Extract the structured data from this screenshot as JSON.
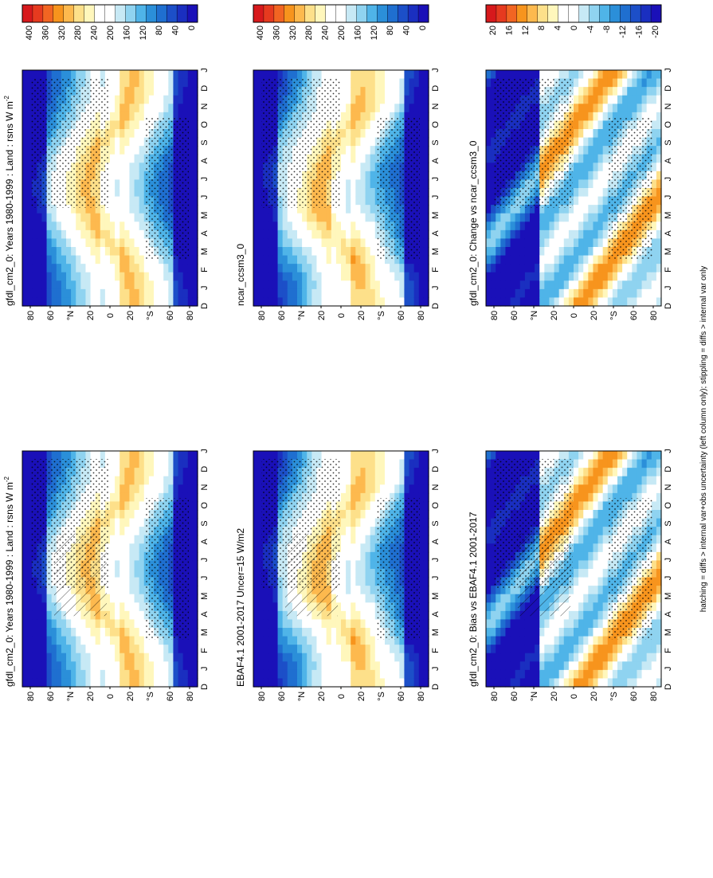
{
  "footer_note": "hatching = diffs > internal var+obs uncertainty (left column only); stippling = diffs > internal var only",
  "colorbar_abs": {
    "labels": [
      "400",
      "360",
      "320",
      "280",
      "240",
      "200",
      "160",
      "120",
      "80",
      "40",
      "0"
    ],
    "colors": [
      "#d7191c",
      "#e63a1f",
      "#f26522",
      "#f7941d",
      "#fdb94e",
      "#fde08a",
      "#fff7bc",
      "#ffffff",
      "#ffffff",
      "#c7e9f5",
      "#8fd3f0",
      "#4fb4e8",
      "#2b8fd9",
      "#1f6fd0",
      "#1c4fc8",
      "#1a2fc0",
      "#1a10b8"
    ]
  },
  "colorbar_diff": {
    "labels": [
      "20",
      "16",
      "12",
      "8",
      "4",
      "0",
      "-4",
      "-8",
      "-12",
      "-16",
      "-20"
    ],
    "colors": [
      "#d7191c",
      "#e63a1f",
      "#f26522",
      "#f7941d",
      "#fdb94e",
      "#fde08a",
      "#fff7bc",
      "#ffffff",
      "#ffffff",
      "#c7e9f5",
      "#8fd3f0",
      "#4fb4e8",
      "#2b8fd9",
      "#1f6fd0",
      "#1c4fc8",
      "#1a2fc0",
      "#1a10b8"
    ]
  },
  "lat_ticks": [
    "80",
    "60",
    "°N",
    "20",
    "0",
    "20",
    "°S",
    "60",
    "80"
  ],
  "month_ticks": [
    "D",
    "J",
    "F",
    "M",
    "A",
    "M",
    "J",
    "J",
    "A",
    "S",
    "O",
    "N",
    "D",
    "J"
  ],
  "chart_data": [
    {
      "type": "heatmap",
      "panel": "left-top",
      "title": "gfdl_cm2_0: Years 1980-1999 : Land : rsns W m-2",
      "title_main": "gfdl_cm2_0: Years 1980-1999 : Land : rsns W m",
      "title_sup": "-2",
      "variable": "rsns",
      "units": "W m-2",
      "x": "month",
      "y": "latitude",
      "ylim": [
        -90,
        90
      ],
      "colorbar": "colorbar_abs"
    },
    {
      "type": "heatmap",
      "panel": "left-middle",
      "title": "EBAF4.1 2001-2017 Uncer=15 W/m2",
      "variable": "rsns",
      "x": "month",
      "y": "latitude",
      "ylim": [
        -90,
        90
      ],
      "colorbar": "colorbar_abs"
    },
    {
      "type": "heatmap",
      "panel": "left-bottom",
      "title": "gfdl_cm2_0: Bias vs EBAF4.1 2001-2017",
      "variable": "rsns bias",
      "x": "month",
      "y": "latitude",
      "ylim": [
        -90,
        90
      ],
      "colorbar": "colorbar_diff"
    },
    {
      "type": "heatmap",
      "panel": "right-top",
      "title": "gfdl_cm2_0: Years 1980-1999 : Land : rsns W m-2",
      "title_main": "gfdl_cm2_0: Years 1980-1999 : Land : rsns W m",
      "title_sup": "-2",
      "variable": "rsns",
      "units": "W m-2",
      "x": "month",
      "y": "latitude",
      "ylim": [
        -90,
        90
      ],
      "colorbar": "colorbar_abs"
    },
    {
      "type": "heatmap",
      "panel": "right-middle",
      "title": "ncar_ccsm3_0",
      "variable": "rsns",
      "x": "month",
      "y": "latitude",
      "ylim": [
        -90,
        90
      ],
      "colorbar": "colorbar_abs"
    },
    {
      "type": "heatmap",
      "panel": "right-bottom",
      "title": "gfdl_cm2_0: Change vs ncar_ccsm3_0",
      "variable": "rsns change",
      "x": "month",
      "y": "latitude",
      "ylim": [
        -90,
        90
      ],
      "colorbar": "colorbar_diff"
    }
  ]
}
